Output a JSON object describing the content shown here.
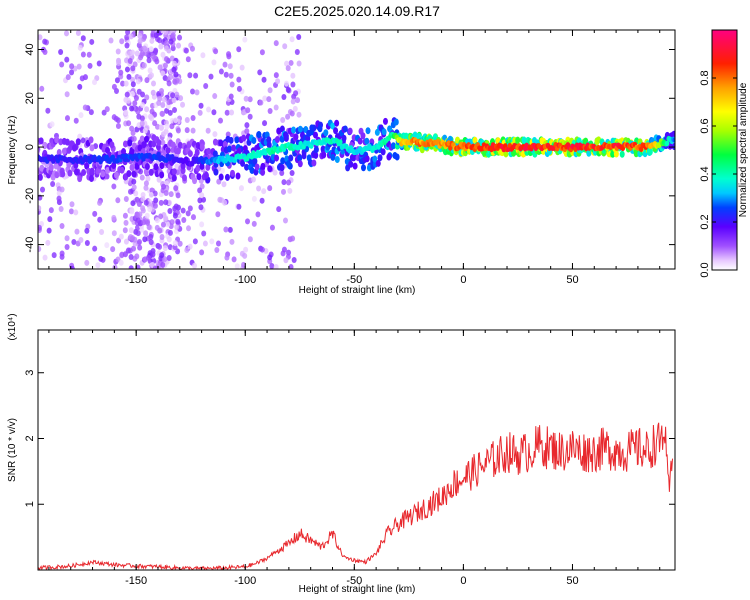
{
  "title": "C2E5.2025.020.14.09.R17",
  "chart_data": [
    {
      "type": "heatmap",
      "xlabel": "Height of straight line (km)",
      "ylabel": "Frequency (Hz)",
      "xlim": [
        -195,
        97
      ],
      "ylim": [
        -50,
        48
      ],
      "xticks": [
        -150,
        -100,
        -50,
        0,
        50
      ],
      "yticks": [
        -40,
        -20,
        0,
        20,
        40
      ],
      "colorbar": {
        "label": "Normalized spectral amplitude",
        "range": [
          0,
          1
        ],
        "ticks": [
          0.0,
          0.2,
          0.4,
          0.6,
          0.8
        ]
      },
      "ridge": {
        "x": [
          -195,
          -180,
          -160,
          -140,
          -125,
          -110,
          -100,
          -90,
          -80,
          -70,
          -60,
          -50,
          -40,
          -32,
          -28,
          -20,
          -10,
          0,
          10,
          30,
          50,
          70,
          85,
          92,
          97
        ],
        "freq": [
          -5,
          -5,
          -5,
          -4,
          -6,
          -5,
          -4,
          -2,
          0,
          1,
          3,
          -2,
          0,
          5,
          2,
          2,
          1,
          0,
          0,
          0,
          0,
          0,
          0,
          2,
          3
        ],
        "amplitude": [
          0.25,
          0.25,
          0.28,
          0.28,
          0.22,
          0.38,
          0.42,
          0.45,
          0.45,
          0.4,
          0.45,
          0.38,
          0.42,
          0.5,
          0.8,
          0.85,
          0.85,
          0.9,
          0.95,
          0.95,
          0.95,
          0.95,
          0.9,
          0.55,
          0.3
        ]
      }
    },
    {
      "type": "line",
      "xlabel": "Height of straight line (km)",
      "ylabel": "SNR (10 * v/v)",
      "yscale_note": "(x10⁴)",
      "xlim": [
        -195,
        97
      ],
      "ylim": [
        0,
        3.65
      ],
      "xticks": [
        -150,
        -100,
        -50,
        0,
        50
      ],
      "yticks": [
        1,
        2,
        3
      ],
      "series": [
        {
          "color": "#e8292e",
          "x": [
            -195,
            -180,
            -170,
            -160,
            -150,
            -140,
            -130,
            -120,
            -110,
            -100,
            -95,
            -90,
            -85,
            -80,
            -75,
            -70,
            -65,
            -60,
            -55,
            -50,
            -45,
            -40,
            -35,
            -30,
            -25,
            -20,
            -15,
            -10,
            -5,
            0,
            5,
            10,
            15,
            20,
            25,
            30,
            35,
            40,
            45,
            50,
            55,
            60,
            65,
            70,
            75,
            80,
            85,
            88,
            90,
            92,
            94,
            96
          ],
          "y": [
            0.03,
            0.06,
            0.12,
            0.08,
            0.06,
            0.05,
            0.03,
            0.02,
            0.03,
            0.05,
            0.1,
            0.18,
            0.3,
            0.4,
            0.55,
            0.45,
            0.35,
            0.55,
            0.2,
            0.15,
            0.12,
            0.25,
            0.55,
            0.7,
            0.8,
            0.9,
            1.0,
            1.1,
            1.3,
            1.4,
            1.5,
            1.6,
            1.7,
            1.8,
            1.75,
            1.8,
            1.9,
            1.85,
            1.8,
            1.85,
            1.8,
            1.8,
            1.85,
            1.82,
            1.8,
            1.85,
            1.8,
            1.95,
            1.9,
            2.2,
            1.2,
            1.6
          ]
        }
      ]
    }
  ]
}
